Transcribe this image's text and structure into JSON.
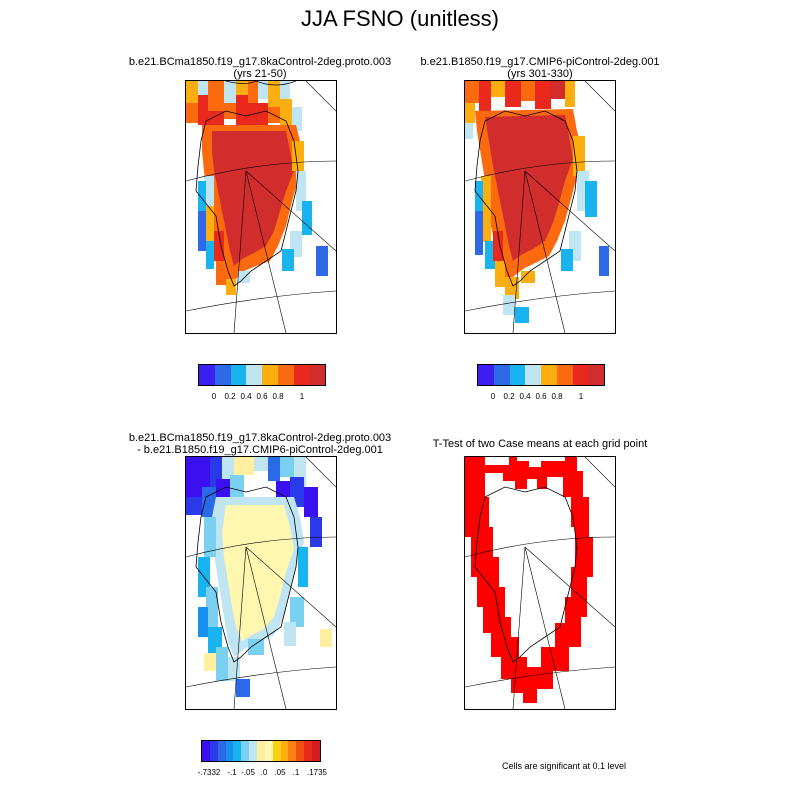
{
  "title": "JJA FSNO (unitless)",
  "panels": [
    {
      "id": "case1",
      "title_lines": [
        "b.e21.BCma1850.f19_g17.8kaControl-2deg.proto.003",
        "(yrs 21-50)"
      ],
      "kind": "abs"
    },
    {
      "id": "case2",
      "title_lines": [
        "b.e21.B1850.f19_g17.CMIP6-piControl-2deg.001",
        "(yrs 301-330)"
      ],
      "kind": "abs"
    },
    {
      "id": "diff",
      "title_lines": [
        "b.e21.BCma1850.f19_g17.8kaControl-2deg.proto.003",
        "- b.e21.B1850.f19_g17.CMIP6-piControl-2deg.001"
      ],
      "kind": "diff"
    },
    {
      "id": "ttest",
      "title_lines": [
        "T-Test of two Case means at each grid point"
      ],
      "kind": "sig"
    }
  ],
  "colorbar_abs": {
    "colors": [
      "#3a1ff0",
      "#2e6ae8",
      "#19b4f0",
      "#bfe4f2",
      "#fcae10",
      "#fc6a10",
      "#e8291c",
      "#d22d2d"
    ],
    "labels": [
      "0",
      "0.2",
      "0.4",
      "0.6",
      "0.8",
      "1"
    ]
  },
  "colorbar_diff": {
    "colors": [
      "#3a10f0",
      "#2a3ae8",
      "#2a6ae8",
      "#1890f0",
      "#19b4f0",
      "#7ad0f0",
      "#bfe4f2",
      "#fff0a0",
      "#fff6b0",
      "#fcd010",
      "#fcae10",
      "#fc8010",
      "#f05010",
      "#e8291c",
      "#d22020"
    ],
    "labels": [
      "-.7332",
      "-.1",
      "-.05",
      ".0",
      ".05",
      ".1",
      ".1735"
    ]
  },
  "significance": {
    "color": "#ff0000",
    "note": "Cells are significant at 0.1 level"
  }
}
